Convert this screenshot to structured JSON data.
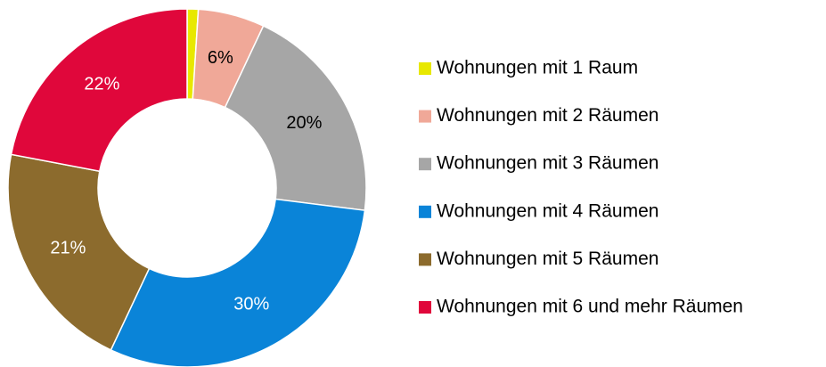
{
  "chart_data": {
    "type": "donut",
    "categories": [
      "Wohnungen mit 1 Raum",
      "Wohnungen mit 2 Räumen",
      "Wohnungen mit 3 Räumen",
      "Wohnungen mit 4 Räumen",
      "Wohnungen mit 5 Räumen",
      "Wohnungen mit 6 und mehr Räumen"
    ],
    "values": [
      1,
      6,
      20,
      30,
      21,
      22
    ],
    "value_labels": [
      null,
      "6%",
      "20%",
      "30%",
      "21%",
      "22%"
    ],
    "colors": [
      "#e8e800",
      "#f0a898",
      "#a6a6a6",
      "#0a84d8",
      "#8c6b2d",
      "#e0073b"
    ],
    "legend": "right"
  }
}
